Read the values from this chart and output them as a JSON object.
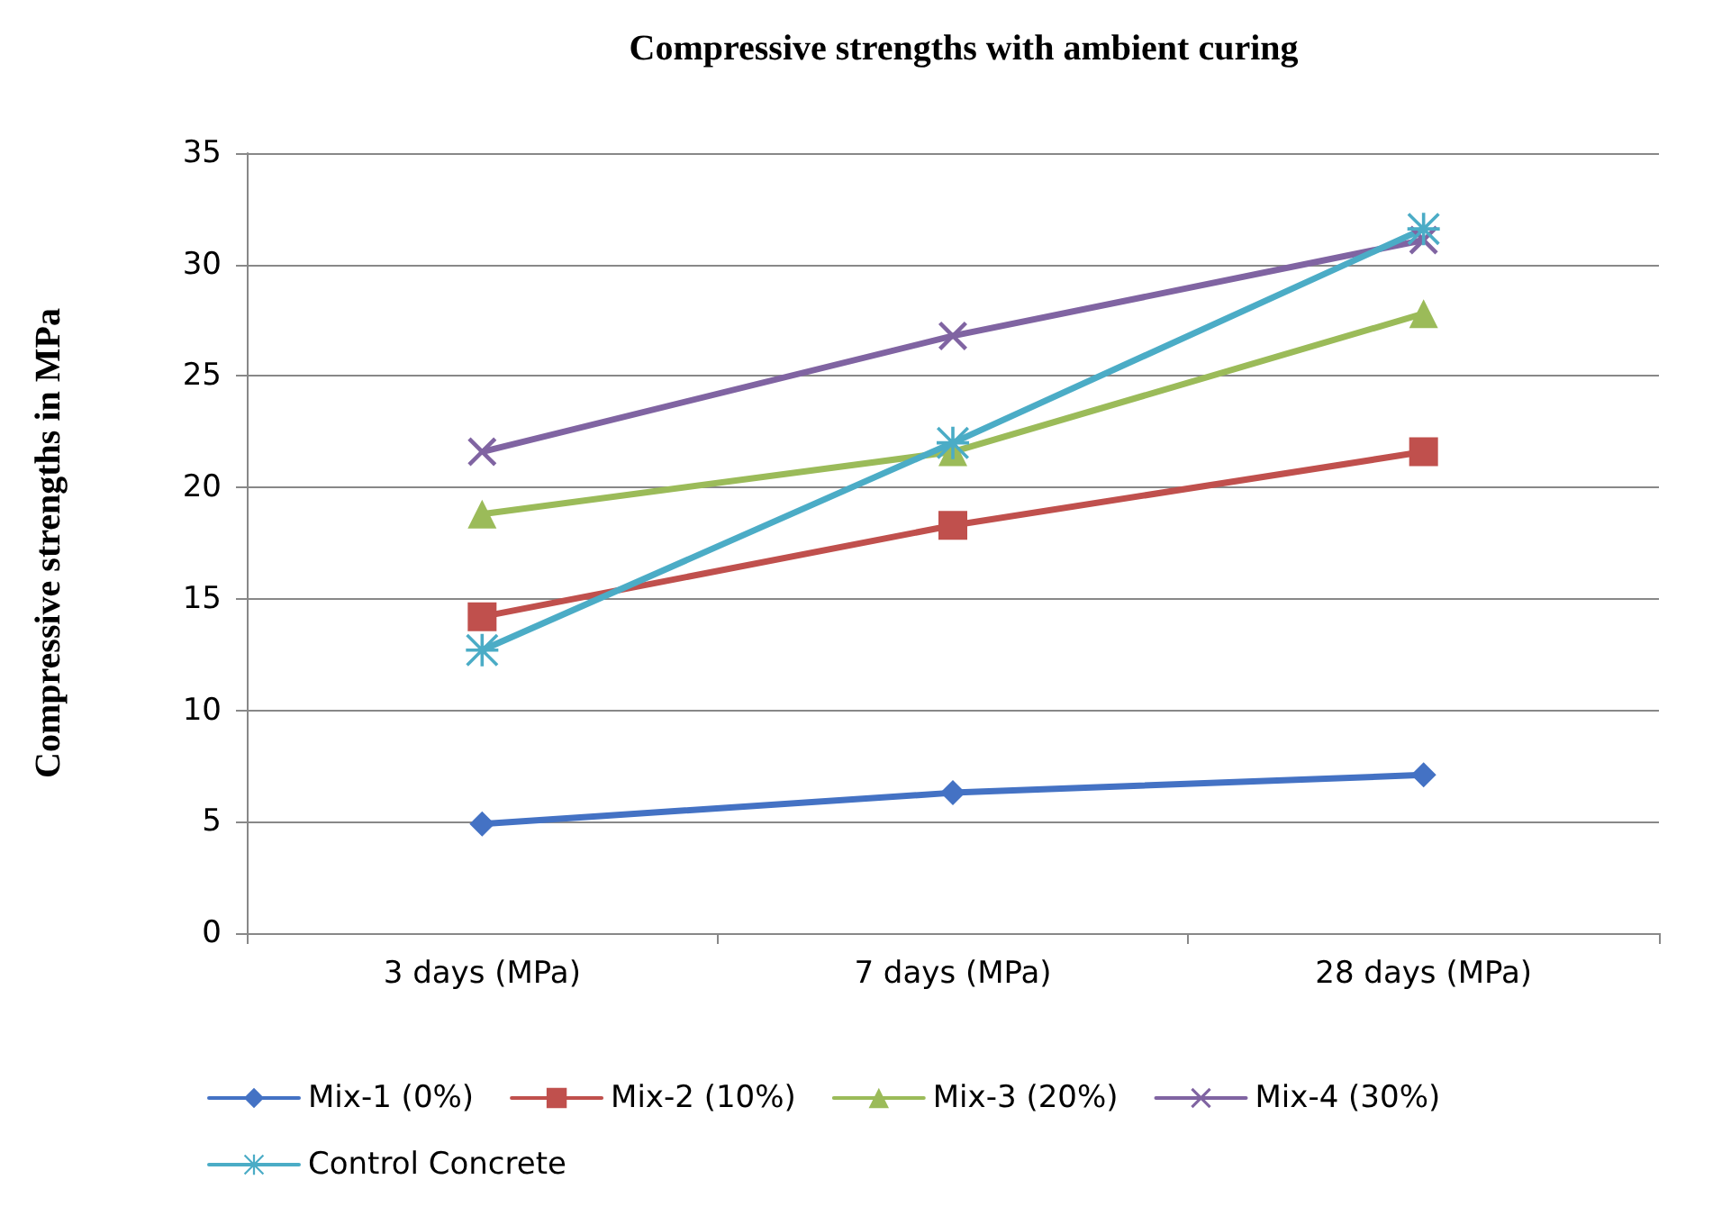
{
  "chart_data": {
    "type": "line",
    "title": "Compressive strengths with ambient curing",
    "ylabel": "Compressive strengths in MPa",
    "categories": [
      "3 days (MPa)",
      "7 days (MPa)",
      "28 days (MPa)"
    ],
    "series": [
      {
        "name": "Mix-1 (0%)",
        "color": "#4472c4",
        "marker": "diamond",
        "values": [
          4.9,
          6.3,
          7.1
        ]
      },
      {
        "name": "Mix-2 (10%)",
        "color": "#c0504d",
        "marker": "square",
        "values": [
          14.2,
          18.3,
          21.6
        ]
      },
      {
        "name": "Mix-3 (20%)",
        "color": "#9bbb59",
        "marker": "triangle",
        "values": [
          18.8,
          21.6,
          27.8
        ]
      },
      {
        "name": "Mix-4 (30%)",
        "color": "#8064a2",
        "marker": "cross",
        "values": [
          21.6,
          26.8,
          31.1
        ]
      },
      {
        "name": "Control Concrete",
        "color": "#4bacc6",
        "marker": "star",
        "values": [
          12.7,
          22.0,
          31.6
        ]
      }
    ],
    "ylim": [
      0,
      35
    ],
    "yticks": [
      0,
      5,
      10,
      15,
      20,
      25,
      30,
      35
    ],
    "grid": "y",
    "legend": "bottom",
    "line_style": "solid"
  }
}
